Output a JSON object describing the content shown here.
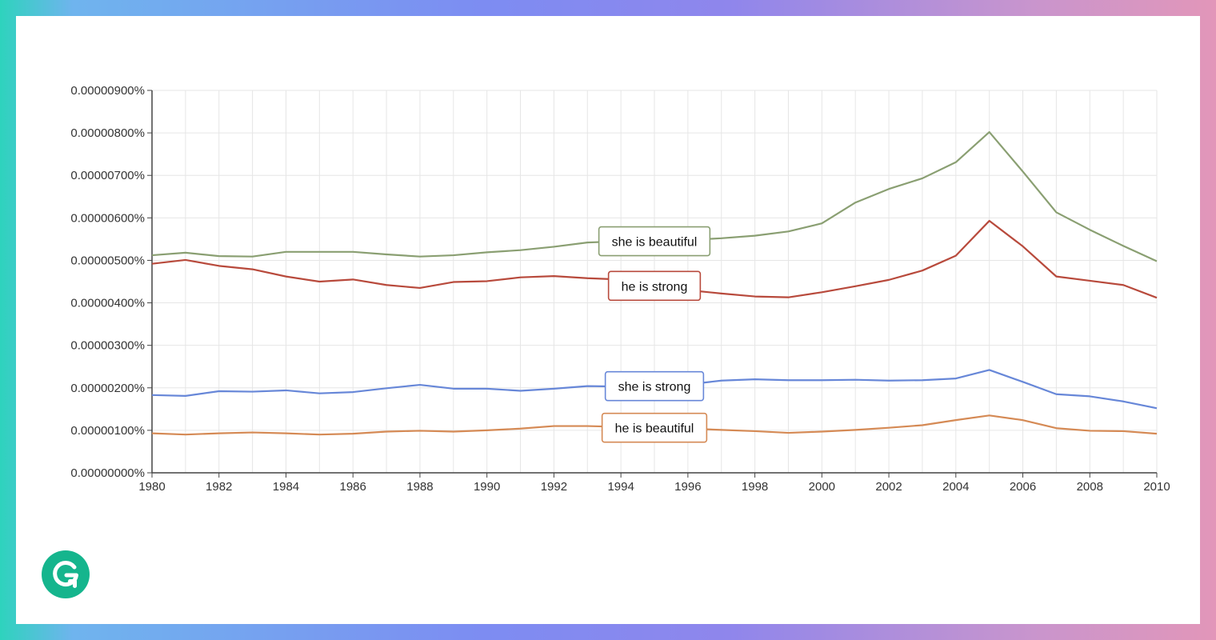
{
  "chart_data": {
    "type": "line",
    "x": [
      1980,
      1981,
      1982,
      1983,
      1984,
      1985,
      1986,
      1987,
      1988,
      1989,
      1990,
      1991,
      1992,
      1993,
      1994,
      1995,
      1996,
      1997,
      1998,
      1999,
      2000,
      2001,
      2002,
      2003,
      2004,
      2005,
      2006,
      2007,
      2008,
      2009,
      2010
    ],
    "xlim": [
      1980,
      2010
    ],
    "x_ticks": [
      "1980",
      "1982",
      "1984",
      "1986",
      "1988",
      "1990",
      "1992",
      "1994",
      "1996",
      "1998",
      "2000",
      "2002",
      "2004",
      "2006",
      "2008",
      "2010"
    ],
    "ylim": [
      0,
      9e-06
    ],
    "y_ticks": [
      {
        "value": 0,
        "label": "0.00000000%"
      },
      {
        "value": 1e-06,
        "label": "0.00000100%"
      },
      {
        "value": 2e-06,
        "label": "0.00000200%"
      },
      {
        "value": 3e-06,
        "label": "0.00000300%"
      },
      {
        "value": 4e-06,
        "label": "0.00000400%"
      },
      {
        "value": 5e-06,
        "label": "0.00000500%"
      },
      {
        "value": 6e-06,
        "label": "0.00000600%"
      },
      {
        "value": 7e-06,
        "label": "0.00000700%"
      },
      {
        "value": 8e-06,
        "label": "0.00000800%"
      },
      {
        "value": 9e-06,
        "label": "0.00000900%"
      }
    ],
    "grid": true,
    "series": [
      {
        "name": "she is beautiful",
        "color": "#8a9f72",
        "label_year": 1995,
        "values": [
          5.12,
          5.18,
          5.1,
          5.09,
          5.2,
          5.2,
          5.2,
          5.14,
          5.09,
          5.12,
          5.19,
          5.24,
          5.32,
          5.42,
          5.45,
          5.45,
          5.48,
          5.52,
          5.58,
          5.68,
          5.87,
          6.36,
          6.68,
          6.93,
          7.31,
          8.02,
          7.09,
          6.13,
          5.72,
          5.34,
          4.98
        ]
      },
      {
        "name": "he is strong",
        "color": "#b84a3c",
        "label_year": 1995,
        "values": [
          4.92,
          5.01,
          4.87,
          4.79,
          4.62,
          4.5,
          4.55,
          4.42,
          4.35,
          4.49,
          4.51,
          4.6,
          4.63,
          4.58,
          4.55,
          4.4,
          4.3,
          4.22,
          4.15,
          4.13,
          4.25,
          4.39,
          4.54,
          4.76,
          5.11,
          5.93,
          5.33,
          4.62,
          4.52,
          4.42,
          4.12
        ]
      },
      {
        "name": "she is strong",
        "color": "#6787d8",
        "label_year": 1995,
        "values": [
          1.83,
          1.81,
          1.92,
          1.91,
          1.94,
          1.87,
          1.9,
          1.99,
          2.07,
          1.98,
          1.98,
          1.93,
          1.98,
          2.04,
          2.03,
          2.04,
          2.08,
          2.17,
          2.2,
          2.18,
          2.18,
          2.19,
          2.17,
          2.18,
          2.22,
          2.42,
          2.14,
          1.85,
          1.8,
          1.68,
          1.52
        ]
      },
      {
        "name": "he is beautiful",
        "color": "#d58a55",
        "label_year": 1995,
        "values": [
          0.93,
          0.9,
          0.93,
          0.95,
          0.93,
          0.9,
          0.92,
          0.97,
          0.99,
          0.97,
          1.0,
          1.04,
          1.1,
          1.1,
          1.08,
          1.06,
          1.04,
          1.01,
          0.98,
          0.94,
          0.97,
          1.01,
          1.06,
          1.12,
          1.24,
          1.35,
          1.24,
          1.05,
          0.99,
          0.98,
          0.92
        ]
      }
    ],
    "value_scale": 1e-06
  },
  "colors": {
    "grid": "#e6e6e6",
    "axis": "#444444",
    "logo": "#15b58d"
  },
  "icons": {
    "logo": "grammarly-logo-icon"
  }
}
